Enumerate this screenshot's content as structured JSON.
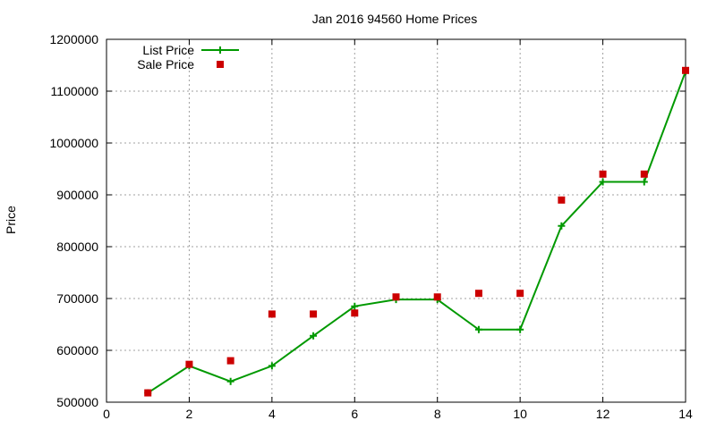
{
  "chart_data": {
    "type": "line",
    "title": "Jan 2016 94560 Home Prices",
    "xlabel": "",
    "ylabel": "Price",
    "xlim": [
      0,
      14
    ],
    "ylim": [
      500000,
      1200000
    ],
    "x_ticks": [
      "0",
      "2",
      "4",
      "6",
      "8",
      "10",
      "12",
      "14"
    ],
    "y_ticks": [
      "500000",
      "600000",
      "700000",
      "800000",
      "900000",
      "1000000",
      "1100000",
      "1200000"
    ],
    "grid": true,
    "legend_position": "top-left",
    "series": [
      {
        "name": "List Price",
        "style": "line-with-plus-markers",
        "color": "#009900",
        "points": [
          [
            1,
            518000
          ],
          [
            2,
            570000
          ],
          [
            3,
            540000
          ],
          [
            4,
            570000
          ],
          [
            5,
            628000
          ],
          [
            6,
            685000
          ],
          [
            7,
            698000
          ],
          [
            8,
            698000
          ],
          [
            9,
            640000
          ],
          [
            10,
            640000
          ],
          [
            11,
            840000
          ],
          [
            12,
            925000
          ],
          [
            13,
            925000
          ],
          [
            14,
            1138000
          ]
        ]
      },
      {
        "name": "Sale Price",
        "style": "square-markers",
        "color": "#cc0000",
        "points": [
          [
            1,
            518000
          ],
          [
            2,
            573000
          ],
          [
            3,
            580000
          ],
          [
            4,
            670000
          ],
          [
            5,
            670000
          ],
          [
            6,
            672000
          ],
          [
            7,
            703000
          ],
          [
            8,
            703000
          ],
          [
            9,
            710000
          ],
          [
            10,
            710000
          ],
          [
            11,
            890000
          ],
          [
            12,
            940000
          ],
          [
            13,
            940000
          ],
          [
            14,
            1140000
          ]
        ]
      }
    ]
  }
}
